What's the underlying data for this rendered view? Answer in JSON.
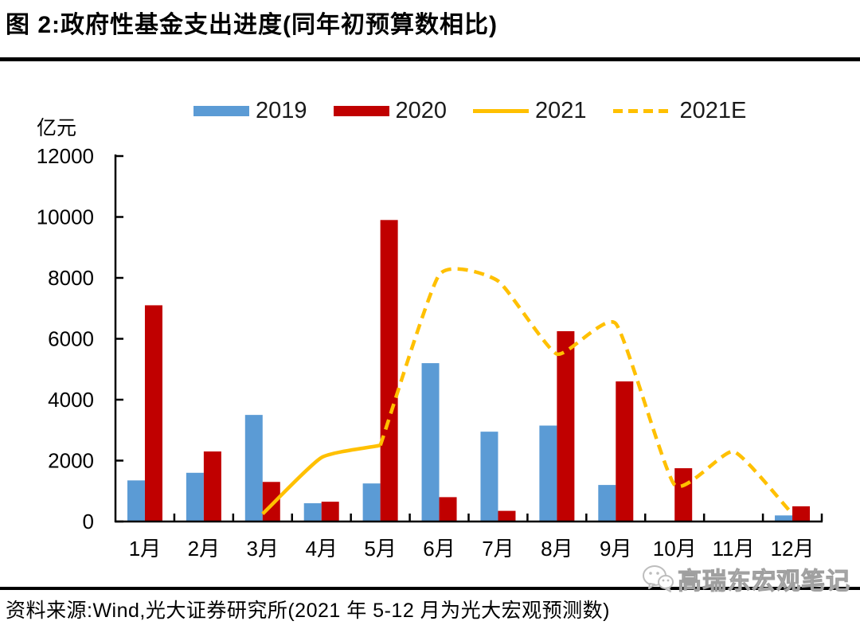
{
  "title": "图 2:政府性基金支出进度(同年初预算数相比)",
  "unit_label": "亿元",
  "legend": [
    {
      "label": "2019",
      "type": "bar",
      "color": "#5B9BD5"
    },
    {
      "label": "2020",
      "type": "bar",
      "color": "#C00000"
    },
    {
      "label": "2021",
      "type": "line",
      "color": "#FFC000"
    },
    {
      "label": "2021E",
      "type": "dash",
      "color": "#FFC000"
    }
  ],
  "footer": {
    "source_text": "资料来源:Wind,光大证券研究所(2021 年 5-12 月为光大宏观预测数)"
  },
  "watermark": {
    "text": "高瑞东宏观笔记",
    "icon": "wechat-icon"
  },
  "colors": {
    "axis": "#000000",
    "blue": "#5B9BD5",
    "red": "#C00000",
    "yellow": "#FFC000"
  },
  "chart_data": {
    "type": "bar",
    "title": "政府性基金支出进度(同年初预算数相比)",
    "xlabel": "",
    "ylabel": "亿元",
    "ylim": [
      0,
      12000
    ],
    "yticks": [
      0,
      2000,
      4000,
      6000,
      8000,
      10000,
      12000
    ],
    "grid": false,
    "legend_position": "top",
    "categories": [
      "1月",
      "2月",
      "3月",
      "4月",
      "5月",
      "6月",
      "7月",
      "8月",
      "9月",
      "10月",
      "11月",
      "12月"
    ],
    "series": [
      {
        "name": "2019",
        "type": "bar",
        "style": "solid",
        "color": "#5B9BD5",
        "values": [
          1350,
          1600,
          3500,
          600,
          1250,
          5200,
          2950,
          3150,
          1200,
          null,
          null,
          200
        ]
      },
      {
        "name": "2020",
        "type": "bar",
        "style": "solid",
        "color": "#C00000",
        "values": [
          7100,
          2300,
          1300,
          650,
          9900,
          800,
          350,
          6250,
          4600,
          1750,
          null,
          500
        ]
      },
      {
        "name": "2021",
        "type": "line",
        "style": "solid",
        "color": "#FFC000",
        "values": [
          null,
          null,
          250,
          2100,
          2500,
          null,
          null,
          null,
          null,
          null,
          null,
          null
        ]
      },
      {
        "name": "2021E",
        "type": "line",
        "style": "dashed",
        "color": "#FFC000",
        "values": [
          null,
          null,
          null,
          null,
          2500,
          8100,
          7900,
          5500,
          6500,
          1200,
          2300,
          250
        ]
      }
    ]
  }
}
